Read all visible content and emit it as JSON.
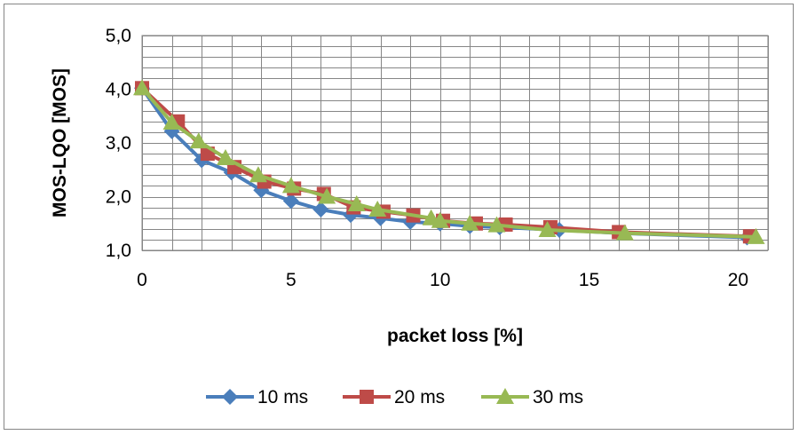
{
  "chart_data": {
    "type": "line",
    "xlabel": "packet loss [%]",
    "ylabel": "MOS-LQO [MOS]",
    "xlim": [
      0,
      21
    ],
    "ylim": [
      1.0,
      5.0
    ],
    "xticks": [
      0,
      5,
      10,
      15,
      20
    ],
    "yticks": [
      1.0,
      2.0,
      3.0,
      4.0,
      5.0
    ],
    "ytick_labels": [
      "1,0",
      "2,0",
      "3,0",
      "4,0",
      "5,0"
    ],
    "grid": true,
    "legend_position": "bottom",
    "series": [
      {
        "name": "10 ms",
        "color": "#4A7EBB",
        "marker": "diamond",
        "x": [
          0,
          1,
          2,
          3,
          4,
          5,
          6,
          7,
          8,
          9,
          10,
          11,
          12,
          14,
          16,
          20.3
        ],
        "y": [
          4.02,
          3.22,
          2.68,
          2.45,
          2.12,
          1.92,
          1.76,
          1.66,
          1.6,
          1.53,
          1.5,
          1.45,
          1.43,
          1.38,
          1.32,
          1.24
        ]
      },
      {
        "name": "20 ms",
        "color": "#BE4B48",
        "marker": "square",
        "x": [
          0,
          1.2,
          2.2,
          3.1,
          4.1,
          5.1,
          6.1,
          7.1,
          8.1,
          9.1,
          10.1,
          11.2,
          12.2,
          13.7,
          16.0,
          20.4
        ],
        "y": [
          4.02,
          3.4,
          2.8,
          2.55,
          2.28,
          2.15,
          2.05,
          1.8,
          1.72,
          1.65,
          1.55,
          1.5,
          1.48,
          1.43,
          1.34,
          1.26
        ]
      },
      {
        "name": "30 ms",
        "color": "#98B954",
        "marker": "triangle",
        "x": [
          0,
          1.0,
          1.9,
          2.8,
          3.9,
          5.0,
          6.2,
          7.2,
          7.9,
          9.7,
          10.0,
          11.0,
          11.9,
          13.6,
          16.2,
          20.6
        ],
        "y": [
          4.02,
          3.38,
          3.03,
          2.72,
          2.4,
          2.2,
          2.0,
          1.86,
          1.76,
          1.6,
          1.55,
          1.5,
          1.47,
          1.38,
          1.32,
          1.25
        ]
      }
    ]
  }
}
